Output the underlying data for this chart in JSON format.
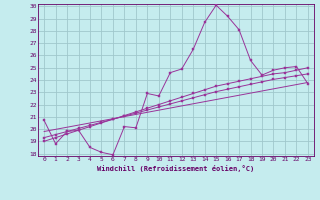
{
  "xlabel": "Windchill (Refroidissement éolien,°C)",
  "background_color": "#c5ecee",
  "grid_color": "#a0c8cc",
  "line_color": "#993399",
  "xlim": [
    -0.5,
    23.5
  ],
  "ylim": [
    17.8,
    30.2
  ],
  "xticks": [
    0,
    1,
    2,
    3,
    4,
    5,
    6,
    7,
    8,
    9,
    10,
    11,
    12,
    13,
    14,
    15,
    16,
    17,
    18,
    19,
    20,
    21,
    22,
    23
  ],
  "yticks": [
    18,
    19,
    20,
    21,
    22,
    23,
    24,
    25,
    26,
    27,
    28,
    29,
    30
  ],
  "series1_x": [
    0,
    1,
    2,
    3,
    4,
    5,
    6,
    7,
    8,
    9,
    10,
    11,
    12,
    13,
    14,
    15,
    16,
    17,
    18,
    19,
    20,
    21,
    22,
    23
  ],
  "series1_y": [
    20.7,
    18.8,
    19.8,
    19.9,
    18.5,
    18.1,
    17.9,
    20.2,
    20.1,
    22.9,
    22.7,
    24.6,
    24.9,
    26.5,
    28.7,
    30.1,
    29.2,
    28.1,
    25.6,
    24.4,
    24.8,
    25.0,
    25.1,
    23.7
  ],
  "series2_x": [
    0,
    1,
    2,
    3,
    4,
    5,
    6,
    7,
    8,
    9,
    10,
    11,
    12,
    13,
    14,
    15,
    16,
    17,
    18,
    19,
    20,
    21,
    22,
    23
  ],
  "series2_y": [
    19.0,
    19.3,
    19.6,
    19.9,
    20.2,
    20.5,
    20.8,
    21.1,
    21.4,
    21.7,
    22.0,
    22.3,
    22.6,
    22.9,
    23.2,
    23.5,
    23.7,
    23.9,
    24.1,
    24.3,
    24.5,
    24.6,
    24.8,
    25.0
  ],
  "series3_x": [
    0,
    1,
    2,
    3,
    4,
    5,
    6,
    7,
    8,
    9,
    10,
    11,
    12,
    13,
    14,
    15,
    16,
    17,
    18,
    19,
    20,
    21,
    22,
    23
  ],
  "series3_y": [
    19.3,
    19.55,
    19.8,
    20.05,
    20.3,
    20.55,
    20.8,
    21.05,
    21.3,
    21.55,
    21.8,
    22.05,
    22.3,
    22.55,
    22.8,
    23.05,
    23.25,
    23.45,
    23.65,
    23.85,
    24.05,
    24.2,
    24.35,
    24.5
  ],
  "series4_x": [
    0,
    23
  ],
  "series4_y": [
    19.8,
    23.8
  ]
}
